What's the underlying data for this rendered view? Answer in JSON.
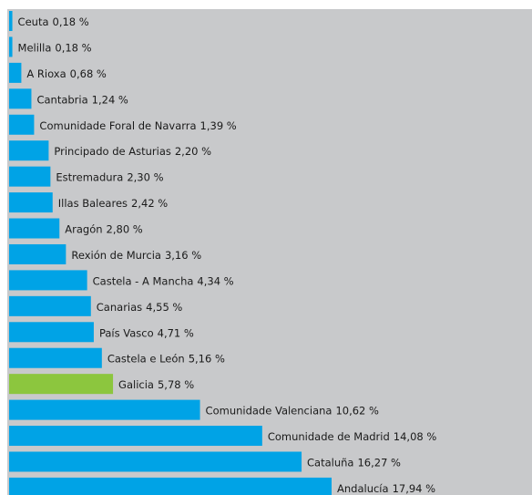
{
  "chart_data": {
    "type": "barh",
    "categories": [
      "Ceuta",
      "Melilla",
      "A Rioxa",
      "Cantabria",
      "Comunidade Foral de Navarra",
      "Principado de Asturias",
      "Estremadura",
      "Illas Baleares",
      "Aragón",
      "Rexión de Murcia",
      "Castela - A Mancha",
      "Canarias",
      "País Vasco",
      "Castela e León",
      "Galicia",
      "Comunidade Valenciana",
      "Comunidade de Madrid",
      "Cataluña",
      "Andalucía"
    ],
    "values": [
      0.18,
      0.18,
      0.68,
      1.24,
      1.39,
      2.2,
      2.3,
      2.42,
      2.8,
      3.16,
      4.34,
      4.55,
      4.71,
      5.16,
      5.78,
      10.62,
      14.08,
      16.27,
      17.94
    ],
    "value_labels": [
      "0,18 %",
      "0,18 %",
      "0,68 %",
      "1,24 %",
      "1,39 %",
      "2,20 %",
      "2,30 %",
      "2,42 %",
      "2,80 %",
      "3,16 %",
      "4,34 %",
      "4,55 %",
      "4,71 %",
      "5,16 %",
      "5,78 %",
      "10,62 %",
      "14,08 %",
      "16,27 %",
      "17,94 %"
    ],
    "colors": [
      "#00a3e6",
      "#00a3e6",
      "#00a3e6",
      "#00a3e6",
      "#00a3e6",
      "#00a3e6",
      "#00a3e6",
      "#00a3e6",
      "#00a3e6",
      "#00a3e6",
      "#00a3e6",
      "#00a3e6",
      "#00a3e6",
      "#00a3e6",
      "#8cc63e",
      "#00a3e6",
      "#00a3e6",
      "#00a3e6",
      "#00a3e6"
    ]
  }
}
